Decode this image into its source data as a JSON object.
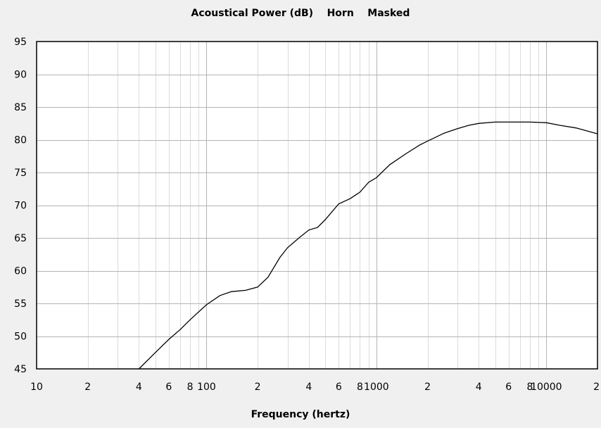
{
  "chart_data": {
    "type": "line",
    "title": "Acoustical Power (dB)    Horn    Masked",
    "xlabel": "Frequency (hertz)",
    "ylabel": "",
    "x_scale": "log",
    "xlim": [
      10,
      20000
    ],
    "ylim": [
      45,
      95
    ],
    "y_ticks": [
      45,
      50,
      55,
      60,
      65,
      70,
      75,
      80,
      85,
      90,
      95
    ],
    "x_tick_labels": [
      {
        "x": 10,
        "label": "10"
      },
      {
        "x": 20,
        "label": "2"
      },
      {
        "x": 40,
        "label": "4"
      },
      {
        "x": 60,
        "label": "6"
      },
      {
        "x": 80,
        "label": "8"
      },
      {
        "x": 100,
        "label": "100"
      },
      {
        "x": 200,
        "label": "2"
      },
      {
        "x": 400,
        "label": "4"
      },
      {
        "x": 600,
        "label": "6"
      },
      {
        "x": 800,
        "label": "8"
      },
      {
        "x": 1000,
        "label": "1000"
      },
      {
        "x": 2000,
        "label": "2"
      },
      {
        "x": 4000,
        "label": "4"
      },
      {
        "x": 6000,
        "label": "6"
      },
      {
        "x": 8000,
        "label": "8"
      },
      {
        "x": 10000,
        "label": "10000"
      },
      {
        "x": 20000,
        "label": "2"
      }
    ],
    "grid": true,
    "series": [
      {
        "color": "#000000",
        "x": [
          40,
          50,
          60,
          70,
          80,
          100,
          120,
          140,
          170,
          200,
          230,
          270,
          300,
          350,
          400,
          450,
          500,
          600,
          700,
          800,
          900,
          1000,
          1200,
          1500,
          1800,
          2000,
          2500,
          3000,
          3500,
          4000,
          5000,
          6000,
          8000,
          10000,
          12000,
          15000,
          20000
        ],
        "y": [
          45,
          47.5,
          49.5,
          51,
          52.5,
          54.8,
          56.2,
          56.8,
          57,
          57.5,
          59,
          62,
          63.5,
          65,
          66.2,
          66.6,
          67.8,
          70.2,
          71,
          72,
          73.5,
          74.2,
          76.2,
          77.9,
          79.2,
          79.8,
          81,
          81.7,
          82.2,
          82.5,
          82.7,
          82.7,
          82.7,
          82.6,
          82.2,
          81.8,
          80.9
        ]
      }
    ]
  }
}
